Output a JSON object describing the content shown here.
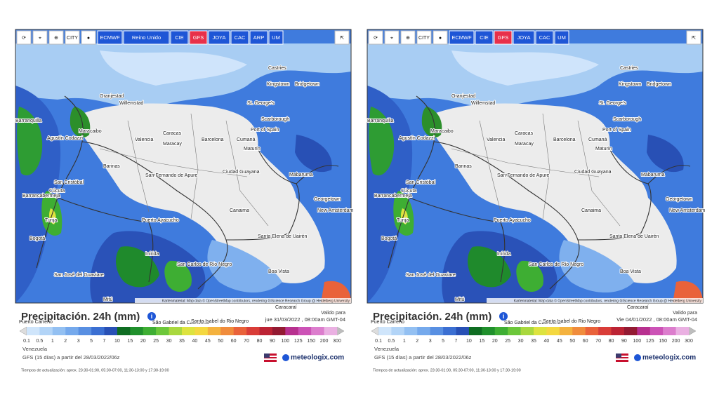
{
  "toolbar_icons": [
    "⟳",
    "⌖",
    "⊕",
    "CITY",
    "●"
  ],
  "panels": [
    {
      "buttons": [
        "ECMWF",
        "Reino Unido",
        "CIE",
        "GFS",
        "JOYA",
        "CAC",
        "ARP",
        "UM"
      ],
      "active": "GFS",
      "valid_label": "Valido para",
      "valid_date": "jue 31/03/2022 , 08:00am GMT-04"
    },
    {
      "buttons": [
        "ECMWF",
        "CIE",
        "GFS",
        "JOYA",
        "CAC",
        "UM"
      ],
      "active": "GFS",
      "valid_label": "Valido para",
      "valid_date": "Vie 04/01/2022 , 08:00am GMT-04"
    }
  ],
  "share_icon": "⇱",
  "cities": [
    "Castries",
    "Kingstown",
    "Bridgetown",
    "Oranjestad",
    "Willemstad",
    "St. George's",
    "Scarborough",
    "Port of Spain",
    "Barranquilla",
    "Maracaibo",
    "Agustín Codazzi",
    "Caracas",
    "Valencia",
    "Maracay",
    "Barcelona",
    "Cumaná",
    "Maturín",
    "Barinas",
    "San Fernando de Apure",
    "Ciudad Guayana",
    "Mabaruma",
    "San Cristóbal",
    "Barrancabermeja",
    "Cúcuta",
    "Georgetown",
    "New Amsterdam",
    "Puerto Ayacucho",
    "Canaima",
    "Tunja",
    "Bogotá",
    "Santa Elena de Uairén",
    "Inírida",
    "San José del Guaviare",
    "San Carlos de Río Negro",
    "Boa Vista",
    "Mitú",
    "Caracaraí",
    "São Gabriel da Cachoeira",
    "Santa Isabel do Rio Negro",
    "Puerto Carreño"
  ],
  "attribution": "Kartenmaterial: Map data © OpenStreetMap contributors, rendering GIScience Research Group @ Heidelberg University",
  "legend": {
    "title": "Precipitación. 24h (mm)",
    "info": "i",
    "ticks": [
      0.1,
      0.5,
      1,
      2,
      3,
      5,
      7,
      10,
      15,
      20,
      25,
      30,
      35,
      40,
      45,
      50,
      60,
      70,
      80,
      90,
      100,
      125,
      150,
      200,
      300
    ],
    "colors": [
      "#cfe5fb",
      "#b2d4f7",
      "#93c0f2",
      "#75a9ec",
      "#588fe2",
      "#3b6fd2",
      "#2850b5",
      "#0f6d22",
      "#20902c",
      "#3eae33",
      "#6cc73a",
      "#a9d83e",
      "#dde33f",
      "#f4d840",
      "#f4b23e",
      "#f08c3c",
      "#e9623a",
      "#d93d38",
      "#bc2334",
      "#931a32",
      "#b7308f",
      "#cc52b6",
      "#dc7dcd",
      "#eab0e2",
      "#bdbdbd"
    ],
    "region": "Venezuela",
    "model": "GFS (15 días) a partir del 28/03/2022/06z",
    "brand": "meteologix.com",
    "update": "Tiempos de actualización: aprox. 23:30-01:00, 05:30-07:00, 11:30-13:00 y 17:30-19:00"
  }
}
